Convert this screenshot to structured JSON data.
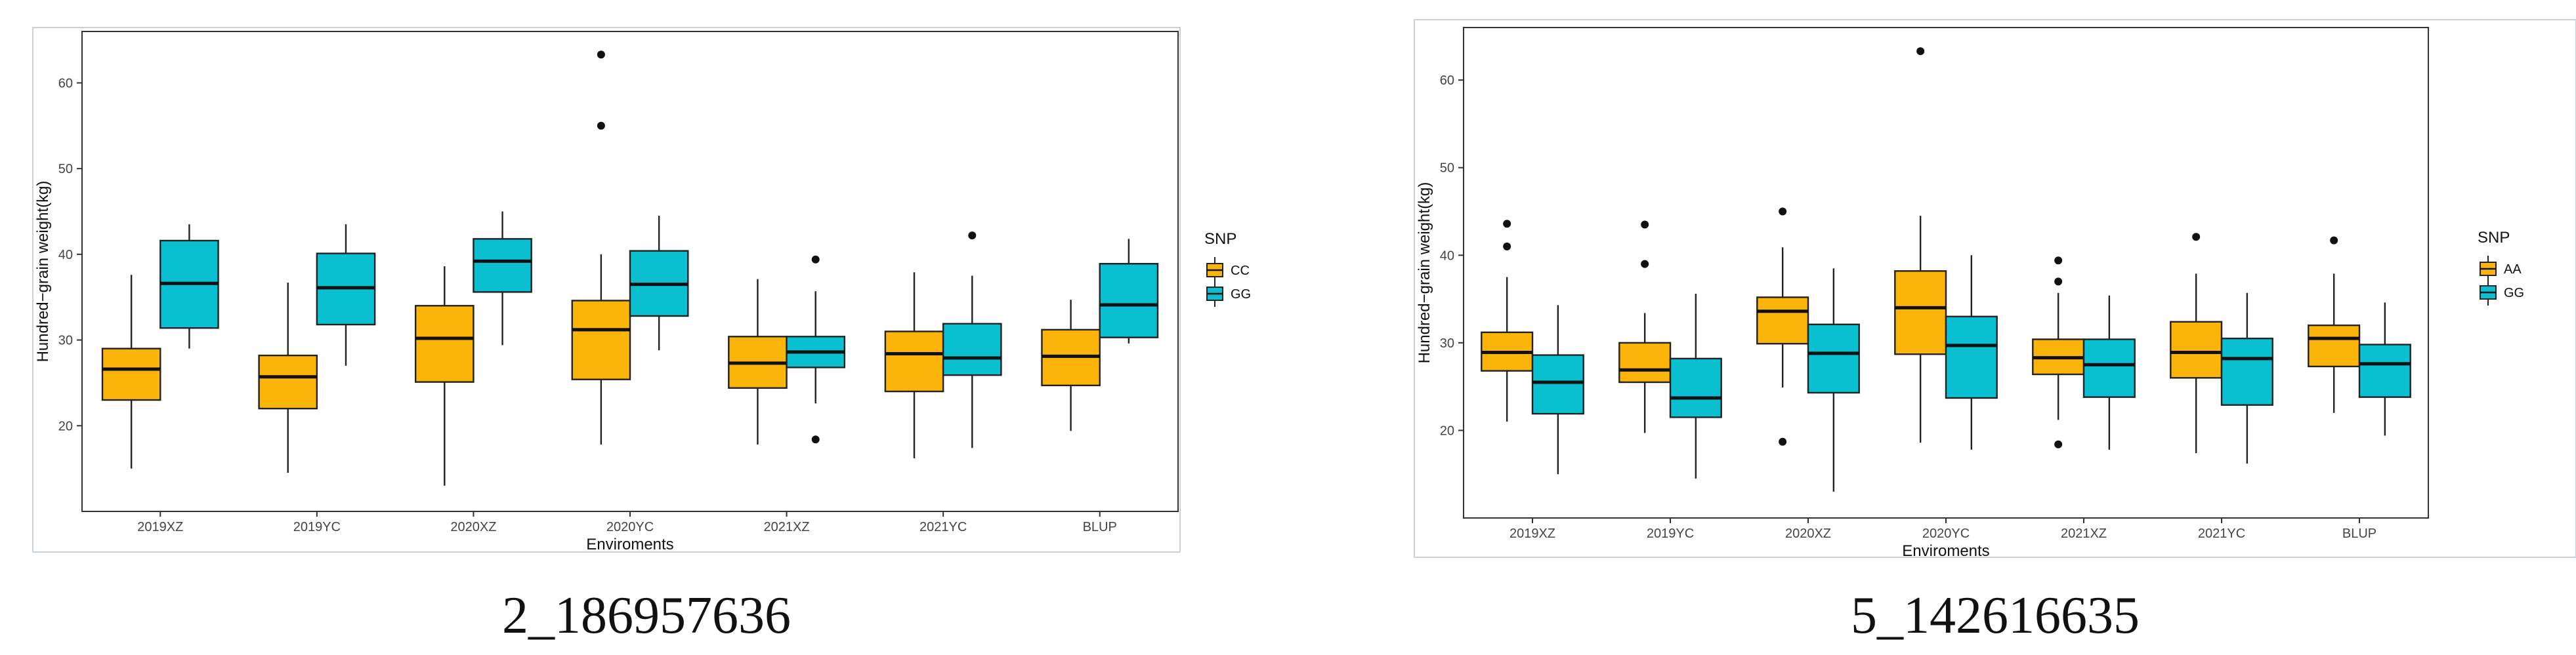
{
  "colors": {
    "primary": "#FBB50A",
    "secondary": "#0ABFCF",
    "stroke": "#222222"
  },
  "chart_data": [
    {
      "type": "boxplot",
      "caption": "2_186957636",
      "xlabel": "Enviroments",
      "ylabel": "Hundred−grain weight(kg)",
      "ylim": [
        10,
        66
      ],
      "yticks": [
        20,
        30,
        40,
        50,
        60
      ],
      "categories": [
        "2019XZ",
        "2019YC",
        "2020XZ",
        "2020YC",
        "2021XZ",
        "2021YC",
        "BLUP"
      ],
      "legend": {
        "title": "SNP",
        "position": "right"
      },
      "series": [
        {
          "name": "CC",
          "boxes": [
            {
              "min": 15.0,
              "q1": 23.0,
              "median": 26.6,
              "q3": 29.0,
              "max": 37.6,
              "outliers": []
            },
            {
              "min": 14.5,
              "q1": 22.0,
              "median": 25.7,
              "q3": 28.2,
              "max": 36.7,
              "outliers": []
            },
            {
              "min": 13.0,
              "q1": 25.1,
              "median": 30.2,
              "q3": 34.0,
              "max": 38.6,
              "outliers": []
            },
            {
              "min": 17.8,
              "q1": 25.4,
              "median": 31.2,
              "q3": 34.6,
              "max": 40.0,
              "outliers": [
                55.0,
                63.3
              ]
            },
            {
              "min": 17.8,
              "q1": 24.4,
              "median": 27.3,
              "q3": 30.4,
              "max": 37.1,
              "outliers": []
            },
            {
              "min": 16.2,
              "q1": 24.0,
              "median": 28.4,
              "q3": 31.0,
              "max": 37.9,
              "outliers": []
            },
            {
              "min": 19.4,
              "q1": 24.7,
              "median": 28.1,
              "q3": 31.2,
              "max": 34.7,
              "outliers": []
            }
          ]
        },
        {
          "name": "GG",
          "boxes": [
            {
              "min": 29.0,
              "q1": 31.4,
              "median": 36.6,
              "q3": 41.6,
              "max": 43.5,
              "outliers": []
            },
            {
              "min": 27.0,
              "q1": 31.8,
              "median": 36.1,
              "q3": 40.1,
              "max": 43.5,
              "outliers": []
            },
            {
              "min": 29.4,
              "q1": 35.6,
              "median": 39.2,
              "q3": 41.8,
              "max": 45.0,
              "outliers": []
            },
            {
              "min": 28.8,
              "q1": 32.8,
              "median": 36.5,
              "q3": 40.4,
              "max": 44.5,
              "outliers": []
            },
            {
              "min": 22.6,
              "q1": 26.8,
              "median": 28.6,
              "q3": 30.4,
              "max": 35.7,
              "outliers": [
                18.4,
                39.4
              ]
            },
            {
              "min": 17.4,
              "q1": 25.9,
              "median": 27.9,
              "q3": 31.9,
              "max": 37.5,
              "outliers": [
                42.2
              ]
            },
            {
              "min": 29.6,
              "q1": 30.3,
              "median": 34.1,
              "q3": 38.9,
              "max": 41.8,
              "outliers": []
            }
          ]
        }
      ]
    },
    {
      "type": "boxplot",
      "caption": "5_142616635",
      "xlabel": "Enviroments",
      "ylabel": "Hundred−grain weight(kg)",
      "ylim": [
        10,
        66
      ],
      "yticks": [
        20,
        30,
        40,
        50,
        60
      ],
      "categories": [
        "2019XZ",
        "2019YC",
        "2020XZ",
        "2020YC",
        "2021XZ",
        "2021YC",
        "BLUP"
      ],
      "legend": {
        "title": "SNP",
        "position": "right"
      },
      "series": [
        {
          "name": "AA",
          "boxes": [
            {
              "min": 21.0,
              "q1": 26.8,
              "median": 28.9,
              "q3": 31.2,
              "max": 37.5,
              "outliers": [
                41.0,
                43.6
              ]
            },
            {
              "min": 19.7,
              "q1": 25.5,
              "median": 26.9,
              "q3": 30.0,
              "max": 33.4,
              "outliers": [
                39.0,
                43.5
              ]
            },
            {
              "min": 24.9,
              "q1": 29.9,
              "median": 33.6,
              "q3": 35.2,
              "max": 40.9,
              "outliers": [
                18.7,
                45.0
              ]
            },
            {
              "min": 18.6,
              "q1": 28.7,
              "median": 34.0,
              "q3": 38.2,
              "max": 44.5,
              "outliers": [
                63.3
              ]
            },
            {
              "min": 21.2,
              "q1": 26.4,
              "median": 28.3,
              "q3": 30.4,
              "max": 35.7,
              "outliers": [
                18.4,
                37.0,
                39.4
              ]
            },
            {
              "min": 17.4,
              "q1": 26.0,
              "median": 28.9,
              "q3": 32.4,
              "max": 37.9,
              "outliers": [
                42.1
              ]
            },
            {
              "min": 22.0,
              "q1": 27.3,
              "median": 30.5,
              "q3": 32.0,
              "max": 37.9,
              "outliers": [
                41.7
              ]
            }
          ]
        },
        {
          "name": "GG",
          "boxes": [
            {
              "min": 15.0,
              "q1": 21.9,
              "median": 25.5,
              "q3": 28.6,
              "max": 34.3,
              "outliers": []
            },
            {
              "min": 14.5,
              "q1": 21.5,
              "median": 23.7,
              "q3": 28.2,
              "max": 35.6,
              "outliers": []
            },
            {
              "min": 13.0,
              "q1": 24.3,
              "median": 28.8,
              "q3": 32.1,
              "max": 38.5,
              "outliers": []
            },
            {
              "min": 17.8,
              "q1": 23.7,
              "median": 29.7,
              "q3": 33.0,
              "max": 40.0,
              "outliers": []
            },
            {
              "min": 17.8,
              "q1": 23.8,
              "median": 27.5,
              "q3": 30.4,
              "max": 35.4,
              "outliers": []
            },
            {
              "min": 16.2,
              "q1": 22.9,
              "median": 28.2,
              "q3": 30.5,
              "max": 35.7,
              "outliers": []
            },
            {
              "min": 19.4,
              "q1": 23.8,
              "median": 27.6,
              "q3": 29.8,
              "max": 34.6,
              "outliers": []
            }
          ]
        }
      ]
    }
  ]
}
